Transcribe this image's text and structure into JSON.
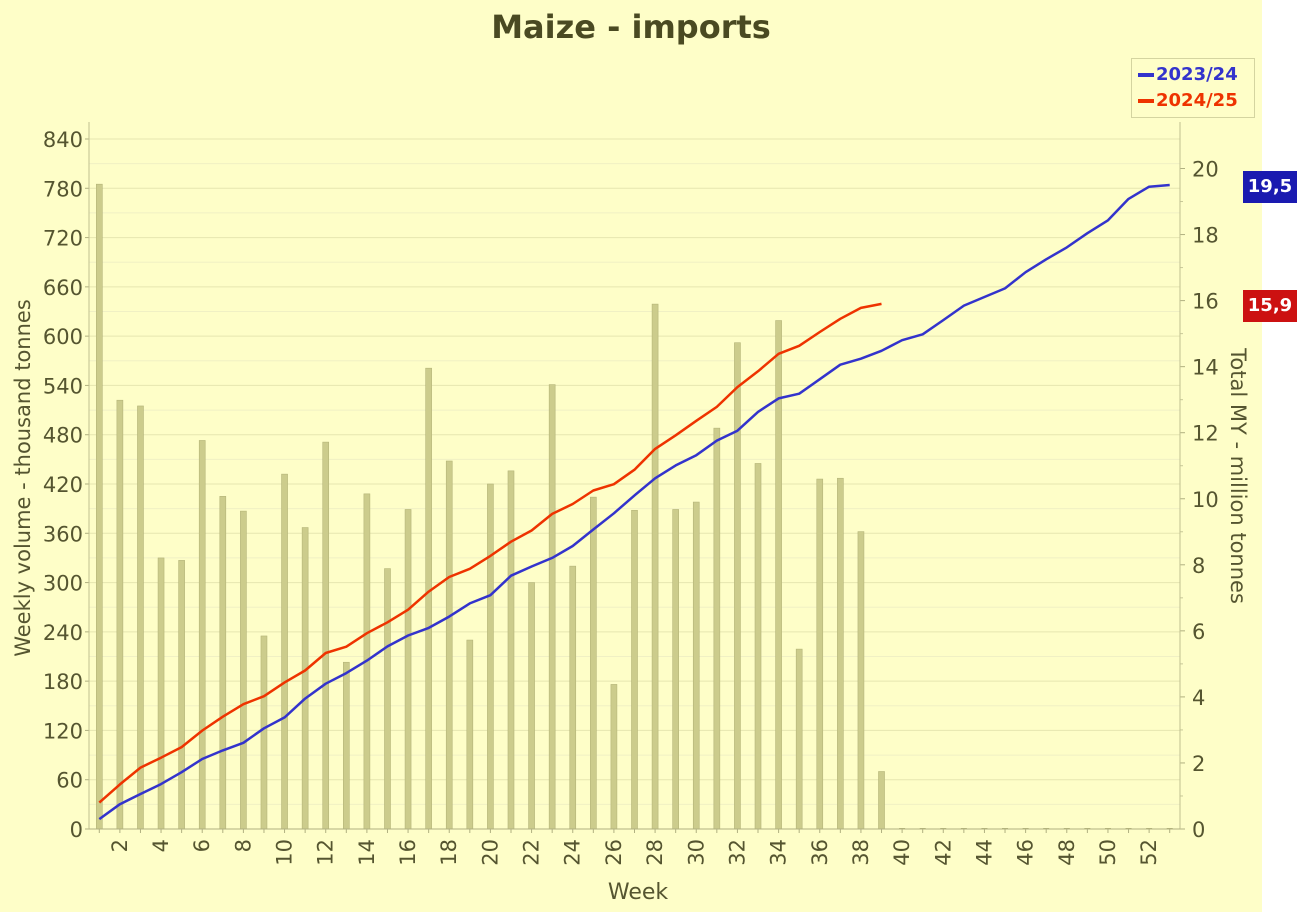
{
  "chart_data": {
    "type": "bar+line",
    "title": "Maize - imports",
    "xlabel": "Week",
    "ylabel_left": "Weekly volume - thousand tonnes",
    "ylabel_right": "Total MY - million tonnes",
    "ylim_left": [
      0,
      840
    ],
    "yticks_left": [
      0,
      60,
      120,
      180,
      240,
      300,
      360,
      420,
      480,
      540,
      600,
      660,
      720,
      780,
      840
    ],
    "ylim_right": [
      0,
      20
    ],
    "yticks_right": [
      0,
      2,
      4,
      6,
      8,
      10,
      12,
      14,
      16,
      18,
      20
    ],
    "xticks": [
      2,
      4,
      6,
      8,
      10,
      12,
      14,
      16,
      18,
      20,
      22,
      24,
      26,
      28,
      30,
      32,
      34,
      36,
      38,
      40,
      42,
      44,
      46,
      48,
      50,
      52
    ],
    "weeks": [
      1,
      2,
      3,
      4,
      5,
      6,
      7,
      8,
      9,
      10,
      11,
      12,
      13,
      14,
      15,
      16,
      17,
      18,
      19,
      20,
      21,
      22,
      23,
      24,
      25,
      26,
      27,
      28,
      29,
      30,
      31,
      32,
      33,
      34,
      35,
      36,
      37,
      38,
      39,
      40,
      41,
      42,
      43,
      44,
      45,
      46,
      47,
      48,
      49,
      50,
      51,
      52,
      53
    ],
    "bars": {
      "axis": "left",
      "color": "#cccc8c",
      "values": [
        785,
        522,
        515,
        330,
        327,
        473,
        405,
        387,
        235,
        432,
        367,
        471,
        203,
        408,
        317,
        389,
        561,
        448,
        230,
        420,
        436,
        300,
        541,
        320,
        404,
        176,
        388,
        639,
        389,
        398,
        488,
        592,
        445,
        619,
        219,
        426,
        427,
        362,
        70,
        0,
        0,
        0,
        0,
        0,
        0,
        0,
        0,
        0,
        0,
        0,
        0,
        0,
        0
      ]
    },
    "series": [
      {
        "name": "2023/24",
        "axis": "right",
        "color": "#3333cc",
        "values": [
          0.3,
          0.75,
          1.06,
          1.36,
          1.72,
          2.12,
          2.38,
          2.61,
          3.05,
          3.38,
          3.95,
          4.4,
          4.72,
          5.1,
          5.53,
          5.86,
          6.09,
          6.43,
          6.83,
          7.08,
          7.67,
          7.95,
          8.21,
          8.57,
          9.07,
          9.56,
          10.1,
          10.62,
          11.01,
          11.32,
          11.76,
          12.06,
          12.63,
          13.04,
          13.18,
          13.62,
          14.06,
          14.24,
          14.48,
          14.8,
          14.98,
          15.41,
          15.85,
          16.11,
          16.37,
          16.86,
          17.25,
          17.61,
          18.04,
          18.43,
          19.08,
          19.45,
          19.5
        ]
      },
      {
        "name": "2024/25",
        "axis": "right",
        "color": "#ee3300",
        "values": [
          0.8,
          1.35,
          1.86,
          2.16,
          2.48,
          2.98,
          3.4,
          3.78,
          4.02,
          4.44,
          4.8,
          5.33,
          5.52,
          5.93,
          6.26,
          6.64,
          7.19,
          7.63,
          7.88,
          8.27,
          8.7,
          9.04,
          9.54,
          9.84,
          10.25,
          10.44,
          10.88,
          11.51,
          11.92,
          12.36,
          12.78,
          13.38,
          13.86,
          14.39,
          14.63,
          15.05,
          15.45,
          15.78,
          15.9
        ]
      }
    ],
    "legend": {
      "position": "top-right",
      "entries": [
        "2023/24",
        "2024/25"
      ]
    },
    "end_labels": [
      {
        "text": "19,5",
        "value": 19.5,
        "color": "#1a1ab0"
      },
      {
        "text": "15,9",
        "value": 15.9,
        "color": "#cc1111"
      }
    ],
    "grid": true
  }
}
